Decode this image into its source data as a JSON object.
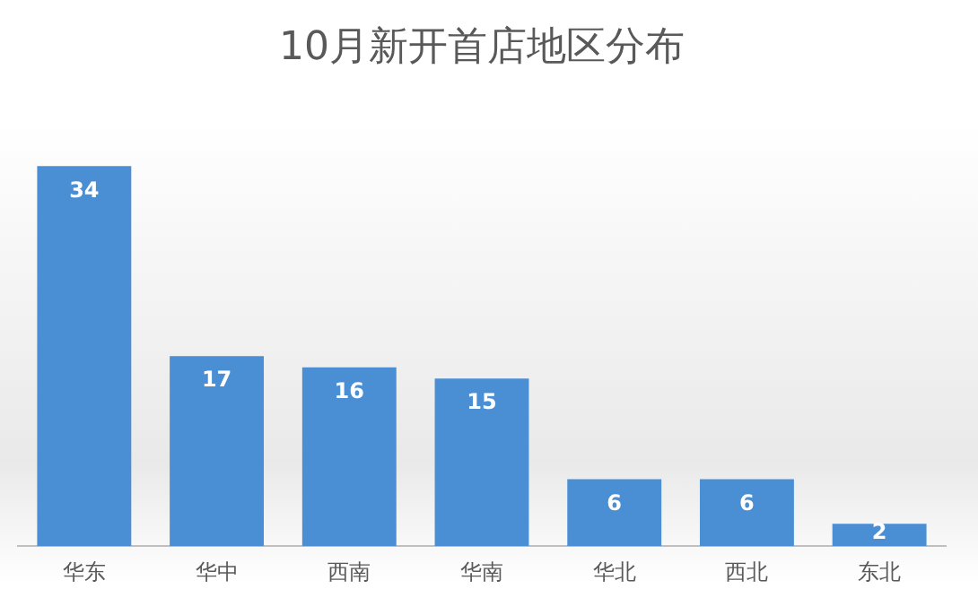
{
  "chart_data": {
    "type": "bar",
    "title": "10月新开首店地区分布",
    "categories": [
      "华东",
      "华中",
      "西南",
      "华南",
      "华北",
      "西北",
      "东北"
    ],
    "values": [
      34,
      17,
      16,
      15,
      6,
      6,
      2
    ],
    "color": "#4a8ed4",
    "data_labels": true,
    "grid": false,
    "legend": false
  }
}
